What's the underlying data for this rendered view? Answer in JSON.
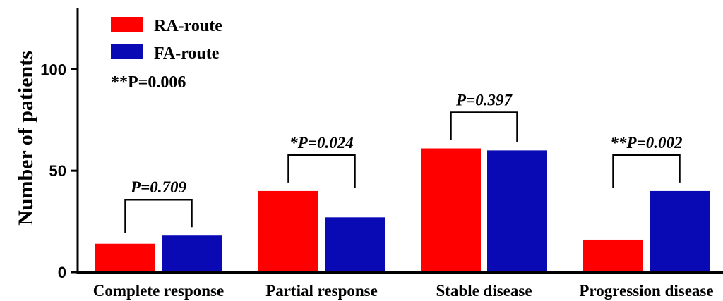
{
  "chart_data": {
    "type": "bar",
    "title": "",
    "xlabel": "",
    "ylabel": "Number of patients",
    "ylim": [
      0,
      130
    ],
    "yticks": [
      0,
      50,
      100
    ],
    "categories": [
      "Complete response",
      "Partial response",
      "Stable disease",
      "Progression disease"
    ],
    "series": [
      {
        "name": "RA-route",
        "color": "#ff0000",
        "values": [
          14,
          40,
          61,
          16
        ]
      },
      {
        "name": "FA-route",
        "color": "#0a0ab4",
        "values": [
          18,
          27,
          60,
          40
        ]
      }
    ],
    "annotations": [
      "P=0.709",
      "*P=0.024",
      "P=0.397",
      "**P=0.002"
    ],
    "overall_annotation": "**P=0.006",
    "legend_position": "top-left",
    "grid": false
  }
}
